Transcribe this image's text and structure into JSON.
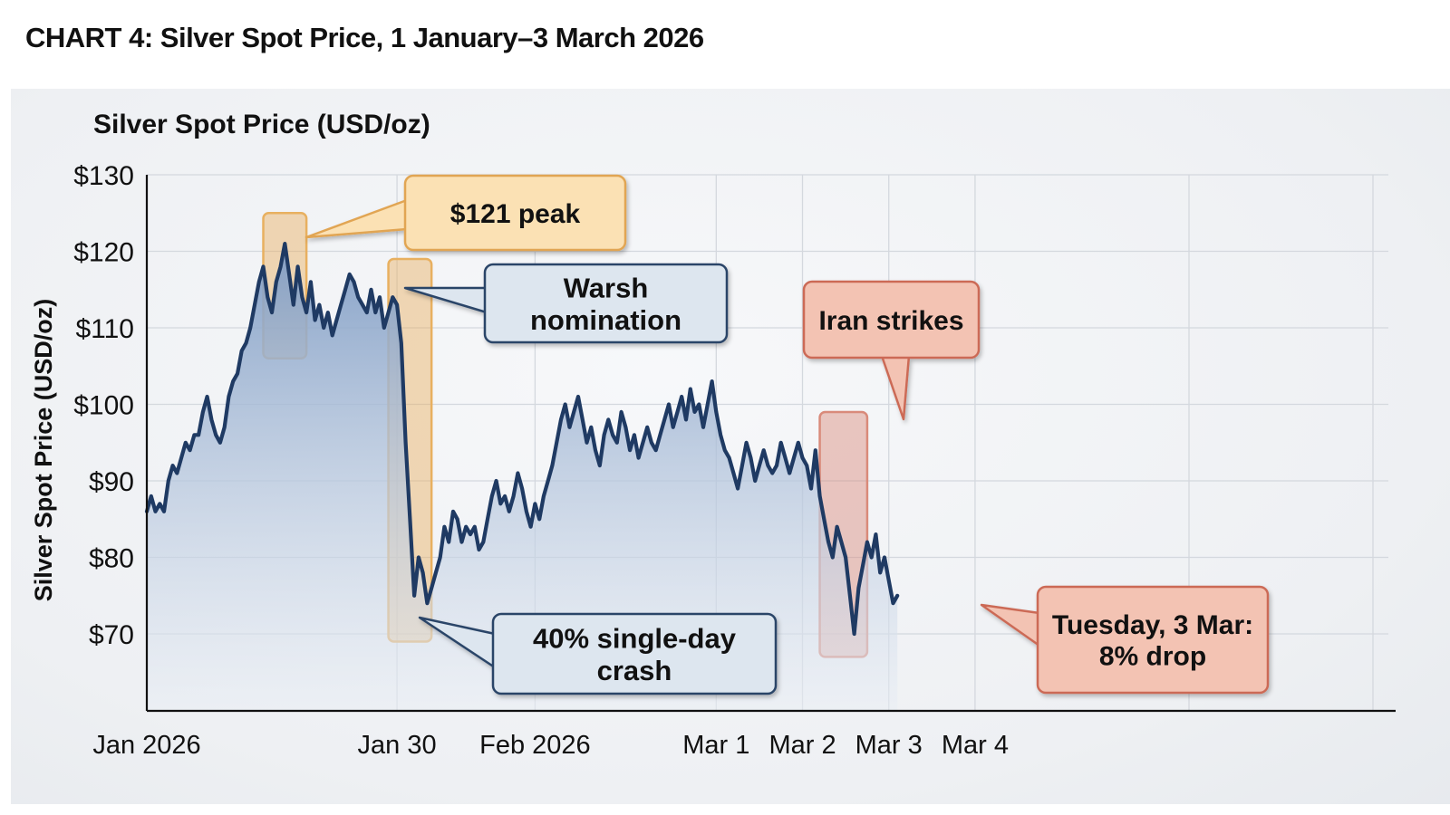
{
  "page": {
    "title": "CHART 4: Silver Spot Price, 1 January–3 March 2026"
  },
  "chart_data": {
    "type": "area",
    "title": "Silver Spot Price (USD/oz)",
    "xlabel": "",
    "ylabel": "Silver Spot Price (USD/oz)",
    "ylim": [
      60,
      130
    ],
    "grid": true,
    "y_ticks": [
      {
        "value": 130,
        "label": "$130"
      },
      {
        "value": 120,
        "label": "$120"
      },
      {
        "value": 110,
        "label": "$110"
      },
      {
        "value": 100,
        "label": "$100"
      },
      {
        "value": 90,
        "label": "$90"
      },
      {
        "value": 80,
        "label": "$80"
      },
      {
        "value": 70,
        "label": "$70"
      }
    ],
    "x_ticks": [
      {
        "t": 0,
        "label": "Jan 2026"
      },
      {
        "t": 29,
        "label": "Jan 30"
      },
      {
        "t": 45,
        "label": "Feb 2026"
      },
      {
        "t": 66,
        "label": "Mar 1"
      },
      {
        "t": 76,
        "label": "Mar 2"
      },
      {
        "t": 86,
        "label": "Mar 3"
      },
      {
        "t": 96,
        "label": "Mar 4"
      }
    ],
    "x_range": [
      0,
      144
    ],
    "series": [
      {
        "color": "#1f3a63",
        "points": [
          [
            0.0,
            86
          ],
          [
            0.5,
            88
          ],
          [
            1.0,
            86
          ],
          [
            1.5,
            87
          ],
          [
            2.0,
            86
          ],
          [
            2.5,
            90
          ],
          [
            3.0,
            92
          ],
          [
            3.5,
            91
          ],
          [
            4.0,
            93
          ],
          [
            4.5,
            95
          ],
          [
            5.0,
            94
          ],
          [
            5.5,
            96
          ],
          [
            6.0,
            96
          ],
          [
            6.5,
            99
          ],
          [
            7.0,
            101
          ],
          [
            7.5,
            98
          ],
          [
            8.0,
            96
          ],
          [
            8.5,
            95
          ],
          [
            9.0,
            97
          ],
          [
            9.5,
            101
          ],
          [
            10.0,
            103
          ],
          [
            10.5,
            104
          ],
          [
            11.0,
            107
          ],
          [
            11.5,
            108
          ],
          [
            12.0,
            110
          ],
          [
            12.5,
            113
          ],
          [
            13.0,
            116
          ],
          [
            13.5,
            118
          ],
          [
            14.0,
            114
          ],
          [
            14.5,
            112
          ],
          [
            15.0,
            116
          ],
          [
            15.5,
            118
          ],
          [
            16.0,
            121
          ],
          [
            16.5,
            117
          ],
          [
            17.0,
            113
          ],
          [
            17.5,
            118
          ],
          [
            18.0,
            114
          ],
          [
            18.5,
            112
          ],
          [
            19.0,
            116
          ],
          [
            19.5,
            111
          ],
          [
            20.0,
            113
          ],
          [
            20.5,
            110
          ],
          [
            21.0,
            112
          ],
          [
            21.5,
            109
          ],
          [
            22.0,
            111
          ],
          [
            22.5,
            113
          ],
          [
            23.0,
            115
          ],
          [
            23.5,
            117
          ],
          [
            24.0,
            116
          ],
          [
            24.5,
            114
          ],
          [
            25.0,
            113
          ],
          [
            25.5,
            112
          ],
          [
            26.0,
            115
          ],
          [
            26.5,
            112
          ],
          [
            27.0,
            114
          ],
          [
            27.5,
            110
          ],
          [
            28.0,
            112
          ],
          [
            28.5,
            114
          ],
          [
            29.0,
            113
          ],
          [
            29.5,
            108
          ],
          [
            30.0,
            95
          ],
          [
            30.5,
            85
          ],
          [
            31.0,
            75
          ],
          [
            31.5,
            80
          ],
          [
            32.0,
            78
          ],
          [
            32.5,
            74
          ],
          [
            33.0,
            76
          ],
          [
            33.5,
            78
          ],
          [
            34.0,
            80
          ],
          [
            34.5,
            84
          ],
          [
            35.0,
            82
          ],
          [
            35.5,
            86
          ],
          [
            36.0,
            85
          ],
          [
            36.5,
            82
          ],
          [
            37.0,
            84
          ],
          [
            37.5,
            83
          ],
          [
            38.0,
            84
          ],
          [
            38.5,
            81
          ],
          [
            39.0,
            82
          ],
          [
            39.5,
            85
          ],
          [
            40.0,
            88
          ],
          [
            40.5,
            90
          ],
          [
            41.0,
            87
          ],
          [
            41.5,
            88
          ],
          [
            42.0,
            86
          ],
          [
            42.5,
            88
          ],
          [
            43.0,
            91
          ],
          [
            43.5,
            89
          ],
          [
            44.0,
            86
          ],
          [
            44.5,
            84
          ],
          [
            45.0,
            87
          ],
          [
            45.5,
            85
          ],
          [
            46.0,
            88
          ],
          [
            46.5,
            90
          ],
          [
            47.0,
            92
          ],
          [
            47.5,
            95
          ],
          [
            48.0,
            98
          ],
          [
            48.5,
            100
          ],
          [
            49.0,
            97
          ],
          [
            49.5,
            99
          ],
          [
            50.0,
            101
          ],
          [
            50.5,
            98
          ],
          [
            51.0,
            95
          ],
          [
            51.5,
            97
          ],
          [
            52.0,
            94
          ],
          [
            52.5,
            92
          ],
          [
            53.0,
            96
          ],
          [
            53.5,
            98
          ],
          [
            54.0,
            96
          ],
          [
            54.5,
            95
          ],
          [
            55.0,
            99
          ],
          [
            55.5,
            97
          ],
          [
            56.0,
            94
          ],
          [
            56.5,
            96
          ],
          [
            57.0,
            93
          ],
          [
            57.5,
            95
          ],
          [
            58.0,
            97
          ],
          [
            58.5,
            95
          ],
          [
            59.0,
            94
          ],
          [
            59.5,
            96
          ],
          [
            60.0,
            98
          ],
          [
            60.5,
            100
          ],
          [
            61.0,
            97
          ],
          [
            61.5,
            99
          ],
          [
            62.0,
            101
          ],
          [
            62.5,
            98
          ],
          [
            63.0,
            102
          ],
          [
            63.5,
            99
          ],
          [
            64.0,
            100
          ],
          [
            64.5,
            97
          ],
          [
            65.0,
            100
          ],
          [
            65.5,
            103
          ],
          [
            66.0,
            99
          ],
          [
            66.5,
            96
          ],
          [
            67.0,
            94
          ],
          [
            67.5,
            93
          ],
          [
            68.0,
            91
          ],
          [
            68.5,
            89
          ],
          [
            69.0,
            92
          ],
          [
            69.5,
            95
          ],
          [
            70.0,
            93
          ],
          [
            70.5,
            90
          ],
          [
            71.0,
            92
          ],
          [
            71.5,
            94
          ],
          [
            72.0,
            92
          ],
          [
            72.5,
            91
          ],
          [
            73.0,
            92
          ],
          [
            73.5,
            95
          ],
          [
            74.0,
            93
          ],
          [
            74.5,
            91
          ],
          [
            75.0,
            93
          ],
          [
            75.5,
            95
          ],
          [
            76.0,
            93
          ],
          [
            76.5,
            92
          ],
          [
            77.0,
            89
          ],
          [
            77.5,
            94
          ],
          [
            78.0,
            88
          ],
          [
            78.5,
            85
          ],
          [
            79.0,
            82
          ],
          [
            79.5,
            80
          ],
          [
            80.0,
            84
          ],
          [
            80.5,
            82
          ],
          [
            81.0,
            80
          ],
          [
            81.5,
            75
          ],
          [
            82.0,
            70
          ],
          [
            82.5,
            76
          ],
          [
            83.0,
            79
          ],
          [
            83.5,
            82
          ],
          [
            84.0,
            80
          ],
          [
            84.5,
            83
          ],
          [
            85.0,
            78
          ],
          [
            85.5,
            80
          ],
          [
            86.0,
            77
          ],
          [
            86.5,
            74
          ],
          [
            87.0,
            75
          ]
        ]
      }
    ],
    "highlights": [
      {
        "label": "$121 peak",
        "color": "#e8b060",
        "t_range": [
          13.5,
          18.5
        ],
        "y_range": [
          106,
          125
        ]
      },
      {
        "label": "40% single-day crash",
        "color": "#e8b060",
        "t_range": [
          28,
          33
        ],
        "y_range": [
          69,
          119
        ]
      },
      {
        "label": "Iran strikes",
        "color": "#d98a7a",
        "t_range": [
          78,
          83.5
        ],
        "y_range": [
          67,
          99
        ]
      }
    ],
    "annotations": [
      {
        "text": "$121 peak",
        "lines": [
          "$121 peak"
        ],
        "style": "orange",
        "target": [
          18,
          122
        ]
      },
      {
        "text": "Warsh nomination",
        "lines": [
          "Warsh",
          "nomination"
        ],
        "style": "blue",
        "target": [
          29,
          115
        ]
      },
      {
        "text": "40% single-day crash",
        "lines": [
          "40% single-day",
          "crash"
        ],
        "style": "blue",
        "target": [
          32,
          74
        ]
      },
      {
        "text": "Iran strikes",
        "lines": [
          "Iran strikes"
        ],
        "style": "red",
        "target": [
          80,
          97
        ]
      },
      {
        "text": "Tuesday, 3 Mar: 8% drop",
        "lines": [
          "Tuesday, 3 Mar:",
          "8% drop"
        ],
        "style": "red",
        "target": [
          87,
          75
        ]
      }
    ],
    "colors": {
      "line": "#1f3a63",
      "area_top": "#7f9cc4",
      "area_bottom": "#e9eef5",
      "orange_fill": "#fbe1b4",
      "orange_stroke": "#e1a553",
      "blue_fill": "#dde6ef",
      "blue_stroke": "#2a4468",
      "red_fill": "#f3c3b3",
      "red_stroke": "#cc6b56"
    }
  }
}
